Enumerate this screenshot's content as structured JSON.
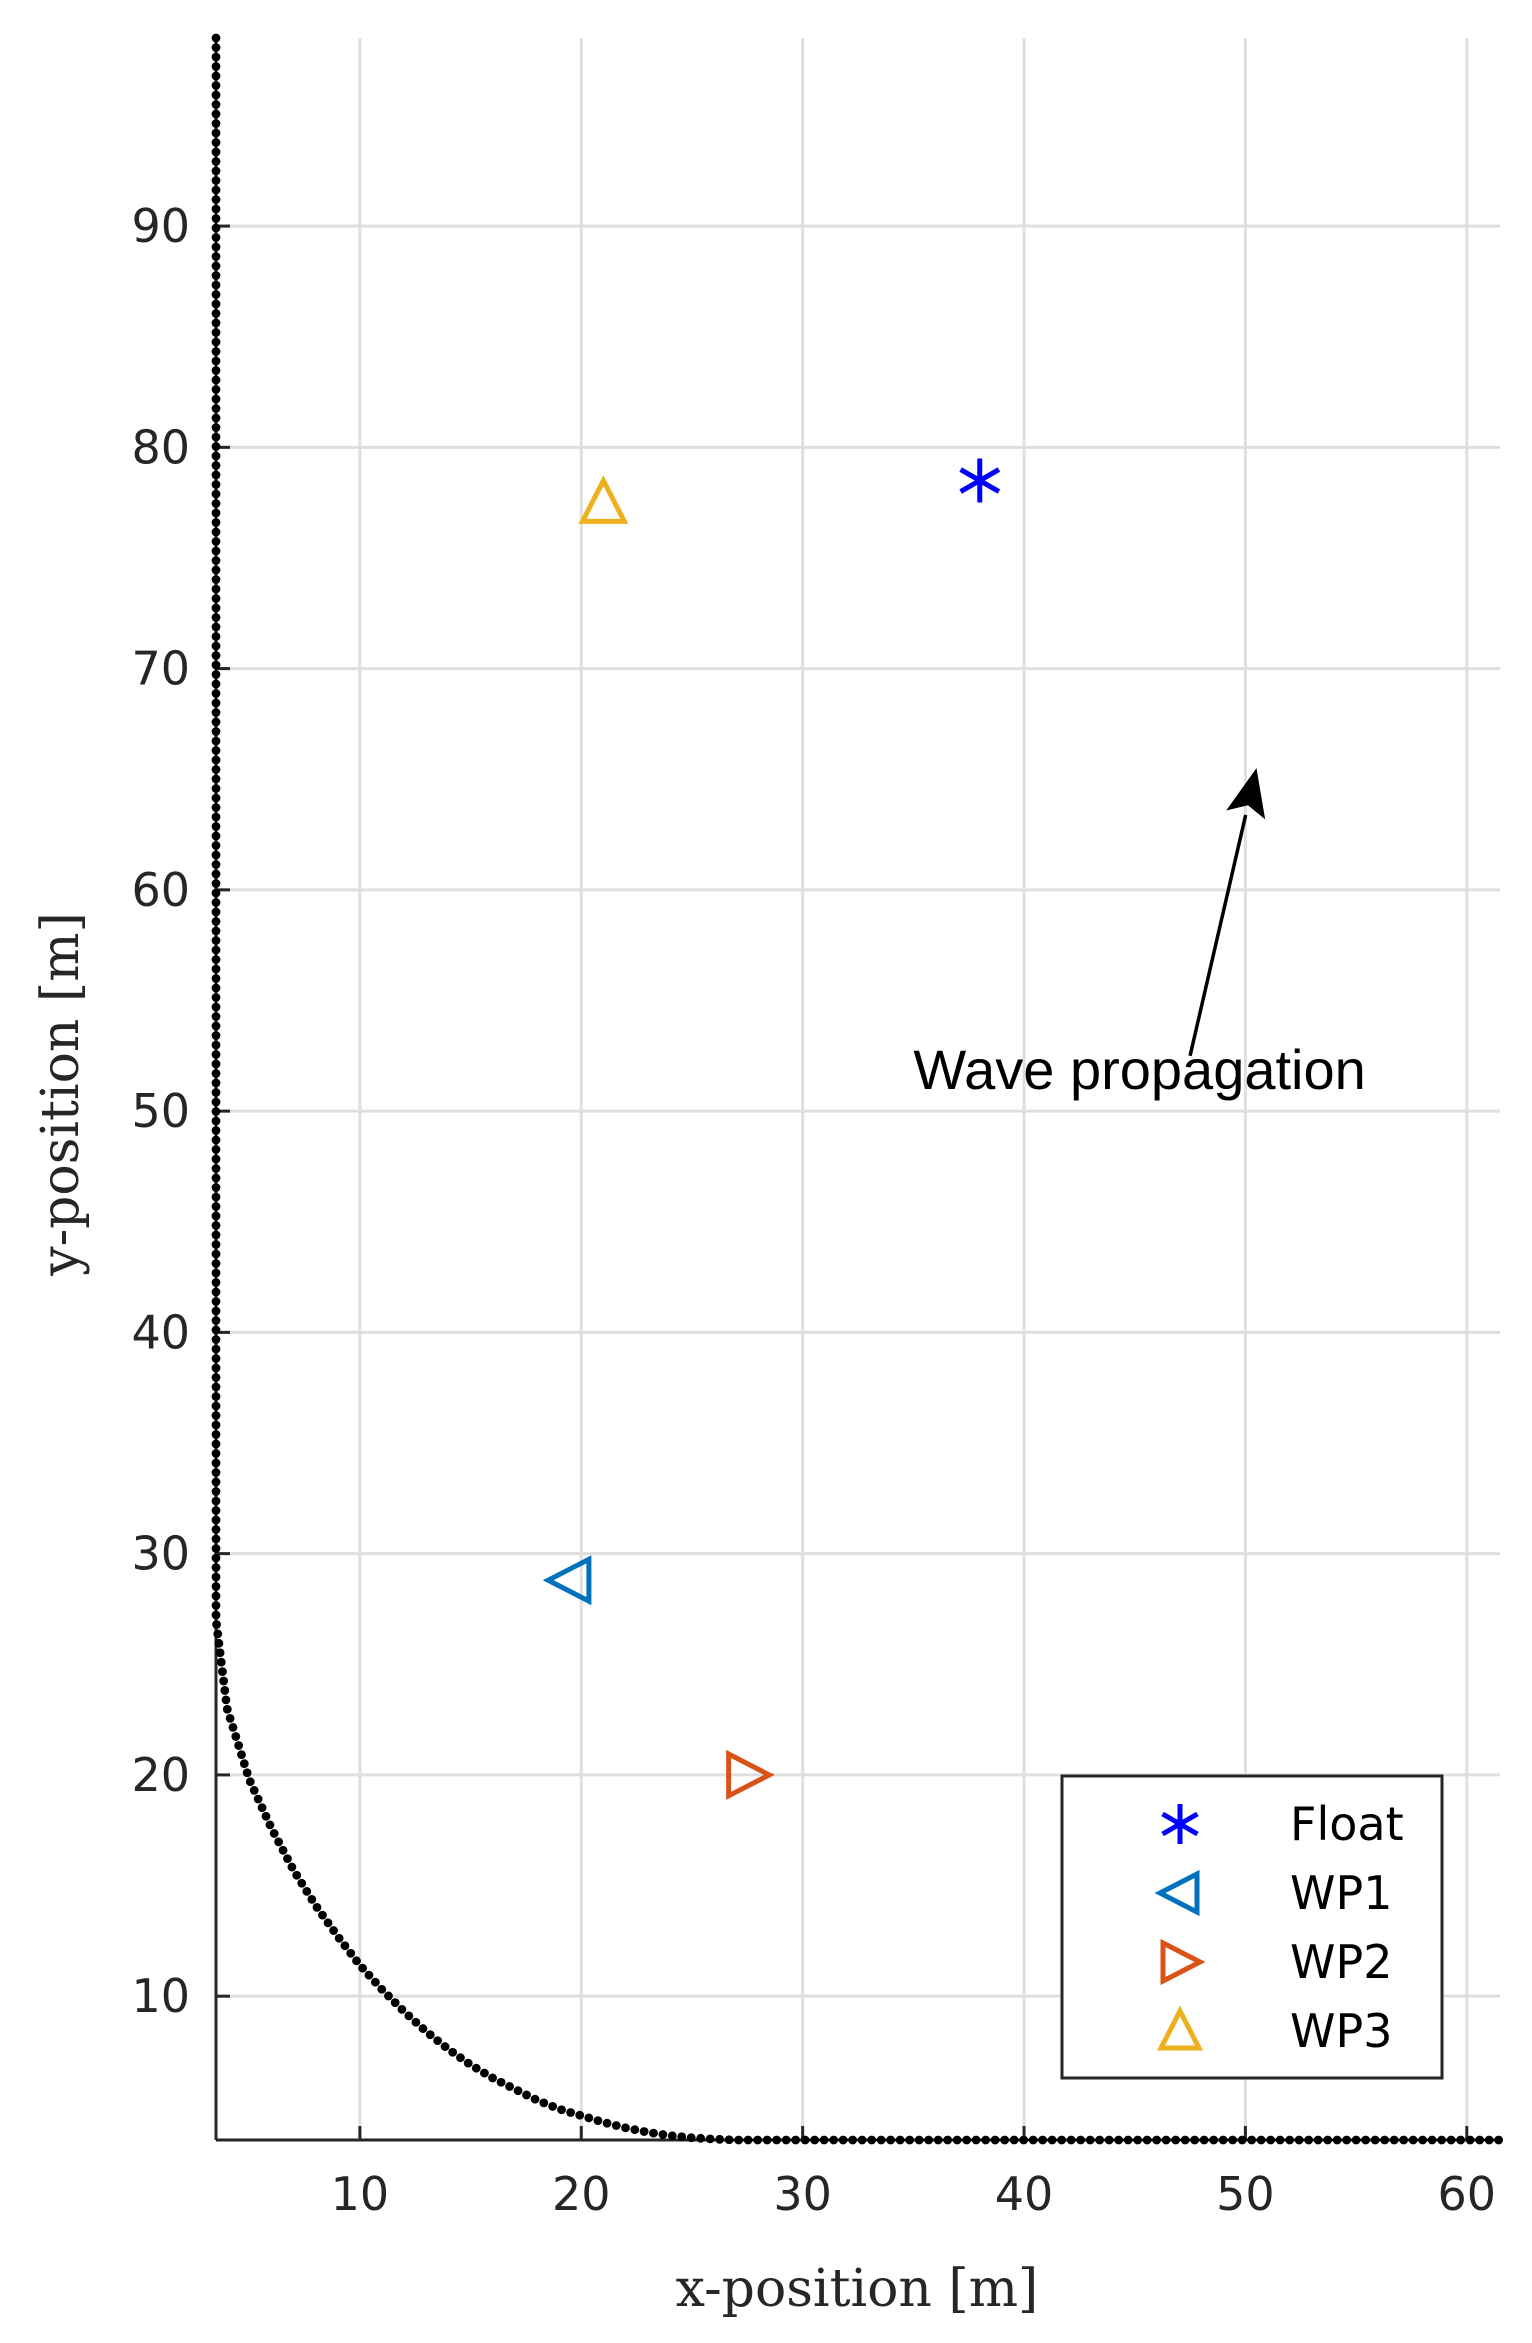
{
  "chart_data": {
    "type": "scatter",
    "title": "",
    "xlabel": "x-position [m]",
    "ylabel": "y-position [m]",
    "xlim": [
      3.5,
      61.5
    ],
    "ylim": [
      3.5,
      98.5
    ],
    "xticks": [
      10,
      20,
      30,
      40,
      50,
      60
    ],
    "yticks": [
      10,
      20,
      30,
      40,
      50,
      60,
      70,
      80,
      90
    ],
    "grid": true,
    "legend_position": "bottom-right",
    "boundary": {
      "name": "boundary",
      "style": "dotted",
      "color": "#000000",
      "points": [
        [
          3.5,
          98.5
        ],
        [
          3.5,
          90
        ],
        [
          3.5,
          80
        ],
        [
          3.5,
          70
        ],
        [
          3.5,
          60
        ],
        [
          3.5,
          50
        ],
        [
          3.5,
          40
        ],
        [
          3.5,
          30
        ],
        [
          3.5,
          27
        ],
        [
          4.0,
          23.0
        ],
        [
          5.0,
          19.8
        ],
        [
          6.0,
          17.6
        ],
        [
          7.0,
          15.7
        ],
        [
          8.0,
          14.1
        ],
        [
          9.0,
          12.7
        ],
        [
          10.0,
          11.4
        ],
        [
          11.0,
          10.3
        ],
        [
          12.0,
          9.3
        ],
        [
          13.0,
          8.4
        ],
        [
          14.0,
          7.6
        ],
        [
          15.0,
          6.9
        ],
        [
          16.0,
          6.3
        ],
        [
          17.0,
          5.8
        ],
        [
          18.0,
          5.3
        ],
        [
          19.0,
          4.9
        ],
        [
          20.0,
          4.6
        ],
        [
          21.0,
          4.3
        ],
        [
          22.0,
          4.05
        ],
        [
          23.0,
          3.85
        ],
        [
          24.0,
          3.7
        ],
        [
          25.0,
          3.6
        ],
        [
          26.0,
          3.54
        ],
        [
          27.0,
          3.5
        ],
        [
          30,
          3.5
        ],
        [
          40,
          3.5
        ],
        [
          50,
          3.5
        ],
        [
          61.5,
          3.5
        ]
      ]
    },
    "series": [
      {
        "name": "Float",
        "marker": "asterisk",
        "color": "#0000ff",
        "x": [
          38
        ],
        "y": [
          78.5
        ]
      },
      {
        "name": "WP1",
        "marker": "triangle-left",
        "color": "#0072bd",
        "x": [
          19.5
        ],
        "y": [
          28.8
        ]
      },
      {
        "name": "WP2",
        "marker": "triangle-right",
        "color": "#d95319",
        "x": [
          27.5
        ],
        "y": [
          20.0
        ]
      },
      {
        "name": "WP3",
        "marker": "triangle-up",
        "color": "#edb120",
        "x": [
          21.0
        ],
        "y": [
          77.5
        ]
      }
    ],
    "annotations": [
      {
        "text": "Wave propagation",
        "text_x": 35,
        "text_y": 51,
        "arrow_from": [
          47.5,
          52.5
        ],
        "arrow_to": [
          50.5,
          65.5
        ]
      }
    ]
  }
}
